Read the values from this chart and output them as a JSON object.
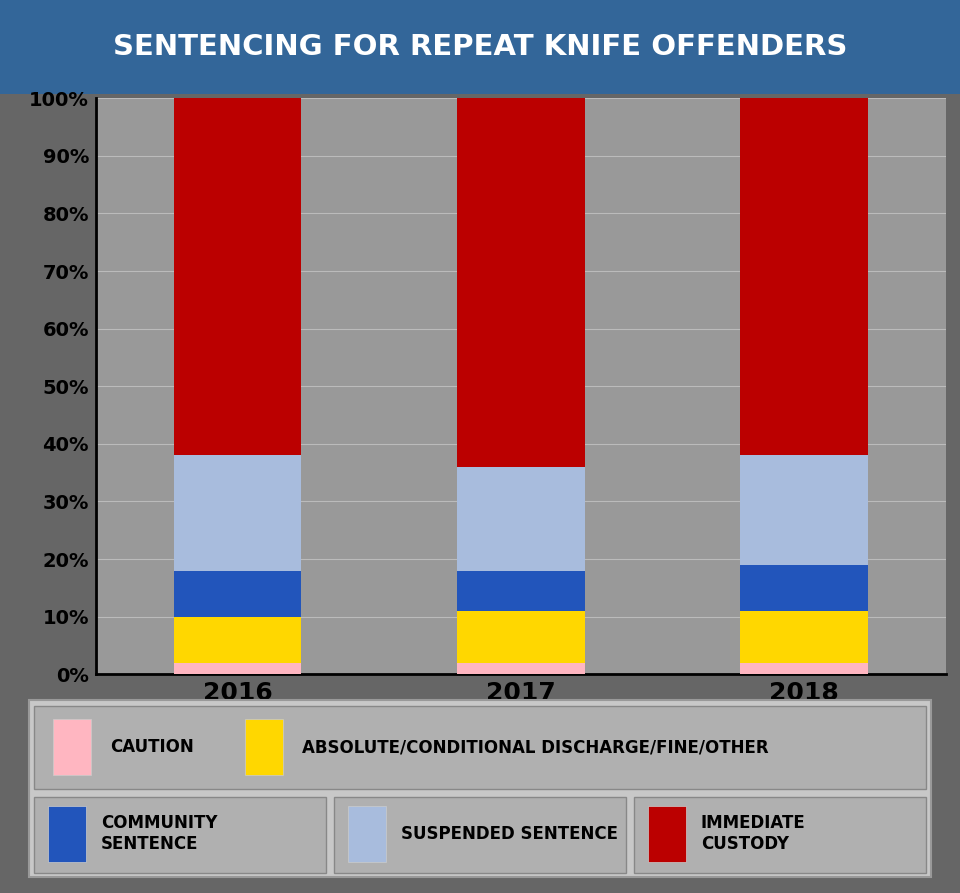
{
  "title": "SENTENCING FOR REPEAT KNIFE OFFENDERS",
  "title_bg_color": "#336699",
  "title_text_color": "#ffffff",
  "years": [
    "2016",
    "2017",
    "2018"
  ],
  "categories": [
    "caution",
    "discharge_fine_other",
    "community_sentence",
    "suspended_sentence",
    "immediate_custody"
  ],
  "colors": {
    "caution": "#ffb6c1",
    "discharge_fine_other": "#ffd700",
    "community_sentence": "#2255bb",
    "suspended_sentence": "#a8bcdd",
    "immediate_custody": "#bb0000"
  },
  "values": {
    "2016": {
      "caution": 2,
      "discharge_fine_other": 8,
      "community_sentence": 8,
      "suspended_sentence": 20,
      "immediate_custody": 62
    },
    "2017": {
      "caution": 2,
      "discharge_fine_other": 9,
      "community_sentence": 7,
      "suspended_sentence": 18,
      "immediate_custody": 64
    },
    "2018": {
      "caution": 2,
      "discharge_fine_other": 9,
      "community_sentence": 8,
      "suspended_sentence": 19,
      "immediate_custody": 62
    }
  },
  "ylim": [
    0,
    100
  ],
  "yticks": [
    0,
    10,
    20,
    30,
    40,
    50,
    60,
    70,
    80,
    90,
    100
  ],
  "bar_width": 0.45,
  "fig_bg_color": "#666666",
  "chart_bg_color": "#999999",
  "legend_bg_color": "#c8c8c8",
  "legend_box_color": "#b0b0b0",
  "grid_color": "#bbbbbb",
  "title_fontsize": 21,
  "tick_fontsize": 14,
  "year_fontsize": 18,
  "legend_fontsize": 12,
  "legend_row1": [
    [
      "caution",
      "CAUTION"
    ],
    [
      "discharge_fine_other",
      "ABSOLUTE/CONDITIONAL DISCHARGE/FINE/OTHER"
    ]
  ],
  "legend_row2": [
    [
      "community_sentence",
      "COMMUNITY\nSENTENCE"
    ],
    [
      "suspended_sentence",
      "SUSPENDED SENTENCE"
    ],
    [
      "immediate_custody",
      "IMMEDIATE\nCUSTODY"
    ]
  ]
}
